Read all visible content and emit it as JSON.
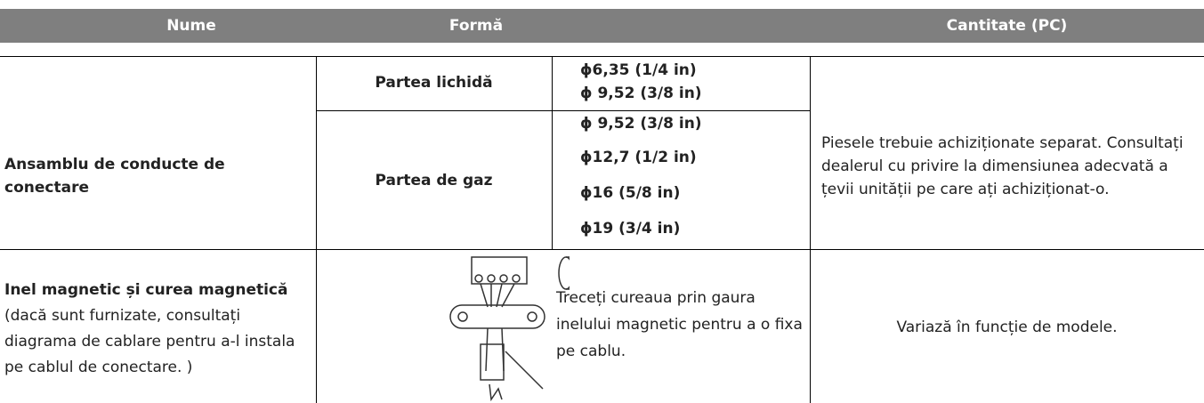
{
  "header": {
    "cells": [
      "Nume",
      "Formă",
      "Cantitate (PC)"
    ]
  },
  "table": {
    "rows": [
      {
        "name": "Ansamblu de conducte de conectare",
        "liquid": {
          "label": "Partea lichidă",
          "sizes": [
            "ϕ6,35 (1/4 in)",
            "ϕ 9,52 (3/8 in)"
          ]
        },
        "gas": {
          "label": "Partea de gaz",
          "sizes": [
            "ϕ 9,52 (3/8 in)",
            "ϕ12,7 (1/2 in)",
            "ϕ16 (5/8 in)",
            "ϕ19 (3/4 in)"
          ]
        },
        "quantity": "Piesele trebuie achiziționate separat. Consultați dealerul cu privire la dimensiunea adecvată a țevii unității pe care ați achiziționat-o."
      },
      {
        "name": "Inel magnetic și curea magnetică",
        "note": "(dacă sunt furnizate, consultați diagrama de cablare pentru a-l instala pe cablul de conectare. )",
        "caption": "Treceți cureaua prin gaura inelului magnetic pentru a o fixa pe cablu.",
        "quantity": "Variază în funcție de modele."
      }
    ]
  }
}
